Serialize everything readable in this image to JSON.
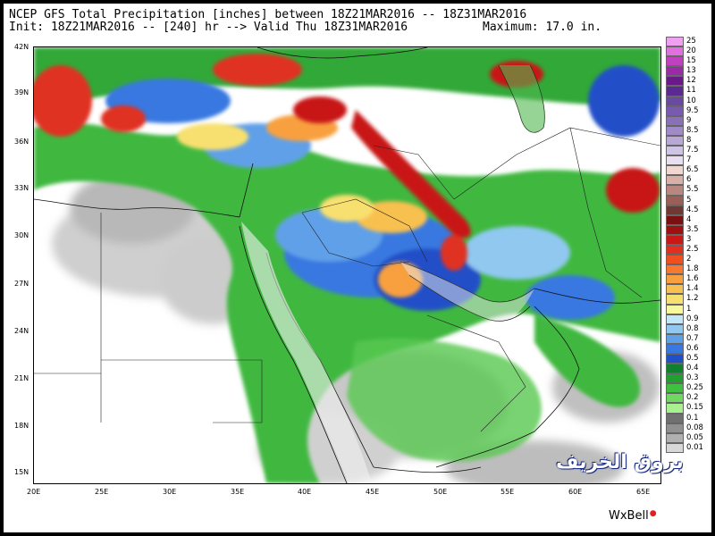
{
  "header": {
    "line1": "NCEP GFS Total Precipitation [inches] between 18Z21MAR2016 -- 18Z31MAR2016",
    "line2": "Init: 18Z21MAR2016 -- [240] hr --> Valid Thu 18Z31MAR2016",
    "maximum": "Maximum: 17.0 in."
  },
  "lat_labels": [
    "42N",
    "39N",
    "36N",
    "33N",
    "30N",
    "27N",
    "24N",
    "21N",
    "18N",
    "15N"
  ],
  "lon_labels": [
    "20E",
    "25E",
    "30E",
    "35E",
    "40E",
    "45E",
    "50E",
    "55E",
    "60E",
    "65E"
  ],
  "colorbar": [
    {
      "label": "25",
      "color": "#f0a0f0"
    },
    {
      "label": "20",
      "color": "#e070e0"
    },
    {
      "label": "15",
      "color": "#c040c0"
    },
    {
      "label": "13",
      "color": "#9a2aa8"
    },
    {
      "label": "12",
      "color": "#6a1a88"
    },
    {
      "label": "11",
      "color": "#5a2a90"
    },
    {
      "label": "10",
      "color": "#6a4aa0"
    },
    {
      "label": "9.5",
      "color": "#7a5ab0"
    },
    {
      "label": "9",
      "color": "#8a70b8"
    },
    {
      "label": "8.5",
      "color": "#a08ac8"
    },
    {
      "label": "8",
      "color": "#b8a8d8"
    },
    {
      "label": "7.5",
      "color": "#d0c4e4"
    },
    {
      "label": "7",
      "color": "#e8e0f0"
    },
    {
      "label": "6.5",
      "color": "#f0d8d0"
    },
    {
      "label": "6",
      "color": "#d8b0a8"
    },
    {
      "label": "5.5",
      "color": "#b88880"
    },
    {
      "label": "5",
      "color": "#986058"
    },
    {
      "label": "4.5",
      "color": "#703830"
    },
    {
      "label": "4",
      "color": "#7a1010"
    },
    {
      "label": "3.5",
      "color": "#a01010"
    },
    {
      "label": "3",
      "color": "#c81818"
    },
    {
      "label": "2.5",
      "color": "#e03020"
    },
    {
      "label": "2",
      "color": "#f05020"
    },
    {
      "label": "1.8",
      "color": "#f87830"
    },
    {
      "label": "1.6",
      "color": "#f8a040"
    },
    {
      "label": "1.4",
      "color": "#f8c050"
    },
    {
      "label": "1.2",
      "color": "#f8e070"
    },
    {
      "label": "1",
      "color": "#f8f8a0"
    },
    {
      "label": "0.9",
      "color": "#c0e8f8"
    },
    {
      "label": "0.8",
      "color": "#90c8f0"
    },
    {
      "label": "0.7",
      "color": "#60a0e8"
    },
    {
      "label": "0.6",
      "color": "#3878e0"
    },
    {
      "label": "0.5",
      "color": "#2050c8"
    },
    {
      "label": "0.4",
      "color": "#108030"
    },
    {
      "label": "0.3",
      "color": "#20a030"
    },
    {
      "label": "0.25",
      "color": "#40c040"
    },
    {
      "label": "0.2",
      "color": "#70d860"
    },
    {
      "label": "0.15",
      "color": "#a8f090"
    },
    {
      "label": "0.1",
      "color": "#707070"
    },
    {
      "label": "0.08",
      "color": "#909090"
    },
    {
      "label": "0.05",
      "color": "#b0b0b0"
    },
    {
      "label": "0.01",
      "color": "#d8d8d8"
    }
  ],
  "brand": "WxBell",
  "watermark": "بروق الخريف"
}
